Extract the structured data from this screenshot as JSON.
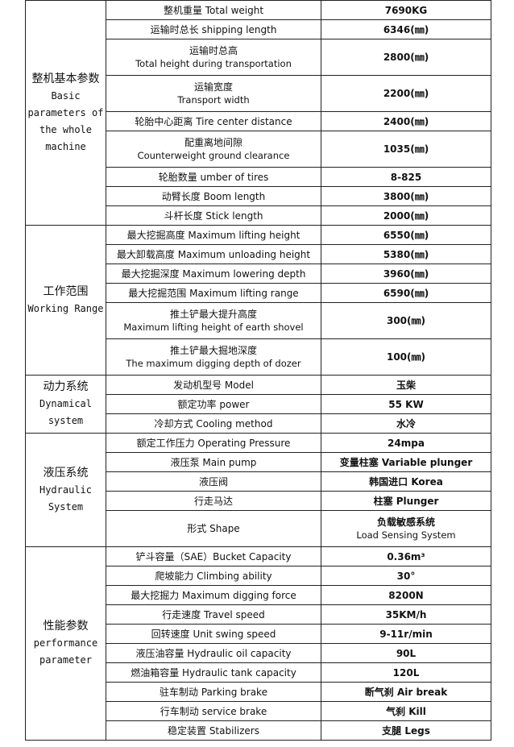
{
  "sections": [
    {
      "zh": "整机基本参数",
      "en": "Basic parameters of the whole machine",
      "rows": [
        {
          "param": "整机重量 Total weight",
          "value": "7690KG"
        },
        {
          "param": "运输时总长 shipping length",
          "value": "6346(㎜)"
        },
        {
          "param": "运输时总高",
          "param_sub": "Total height during transportation",
          "value": "2800(㎜)"
        },
        {
          "param": "运输宽度",
          "param_sub": "Transport width",
          "value": "2200(㎜)"
        },
        {
          "param": "轮胎中心距离 Tire center distance",
          "value": "2400(㎜)"
        },
        {
          "param": "配重离地间隙",
          "param_sub": "Counterweight ground clearance",
          "value": "1035(㎜)"
        },
        {
          "param": "轮胎数量 umber of tires",
          "value": "8-825"
        },
        {
          "param": "动臂长度 Boom length",
          "value": "3800(㎜)"
        },
        {
          "param": "斗杆长度 Stick length",
          "value": "2000(㎜)"
        }
      ]
    },
    {
      "zh": "工作范围",
      "en": "Working Range",
      "rows": [
        {
          "param": "最大挖掘高度 Maximum lifting height",
          "value": "6550(㎜)"
        },
        {
          "param": "最大卸载高度 Maximum unloading height",
          "value": "5380(㎜)"
        },
        {
          "param": "最大挖掘深度 Maximum lowering depth",
          "value": "3960(㎜)"
        },
        {
          "param": "最大挖掘范围 Maximum lifting range",
          "value": "6590(㎜)"
        },
        {
          "param": "推土铲最大提升高度",
          "param_sub": "Maximum lifting height of earth shovel",
          "value": "300(㎜)"
        },
        {
          "param": "推土铲最大掘地深度",
          "param_sub": "The maximum digging depth of dozer",
          "value": "100(㎜)"
        }
      ]
    },
    {
      "zh": "动力系统",
      "en": "Dynamical system",
      "rows": [
        {
          "param": "发动机型号 Model",
          "value": "玉柴"
        },
        {
          "param": "额定功率 power",
          "value": "55 KW"
        },
        {
          "param": "冷却方式 Cooling method",
          "value": "水冷"
        }
      ]
    },
    {
      "zh": "液压系统",
      "en": "Hydraulic System",
      "rows": [
        {
          "param": "额定工作压力 Operating Pressure",
          "value": "24mpa"
        },
        {
          "param": "液压泵 Main pump",
          "value": "变量柱塞 Variable plunger"
        },
        {
          "param": "液压阀",
          "value": "韩国进口 Korea"
        },
        {
          "param": "行走马达",
          "value": "柱塞 Plunger"
        },
        {
          "param": "形式 Shape",
          "value": "负载敏感系统",
          "value_sub": "Load Sensing System"
        }
      ]
    },
    {
      "zh": "性能参数",
      "en": "performance parameter",
      "rows": [
        {
          "param": "铲斗容量（SAE）Bucket Capacity",
          "value": "0.36m³"
        },
        {
          "param": "爬坡能力 Climbing ability",
          "value": "30°"
        },
        {
          "param": "最大挖掘力 Maximum digging force",
          "value": "8200N"
        },
        {
          "param": "行走速度 Travel speed",
          "value": "35KM/h"
        },
        {
          "param": "回转速度 Unit swing speed",
          "value": "9-11r/min"
        },
        {
          "param": "液压油容量 Hydraulic oil capacity",
          "value": "90L"
        },
        {
          "param": "燃油箱容量 Hydraulic tank capacity",
          "value": "120L"
        },
        {
          "param": "驻车制动 Parking brake",
          "value": "断气刹 Air break"
        },
        {
          "param": "行车制动 service brake",
          "value": "气刹 Kill"
        },
        {
          "param": "稳定装置 Stabilizers",
          "value": "支腿 Legs"
        }
      ]
    }
  ]
}
